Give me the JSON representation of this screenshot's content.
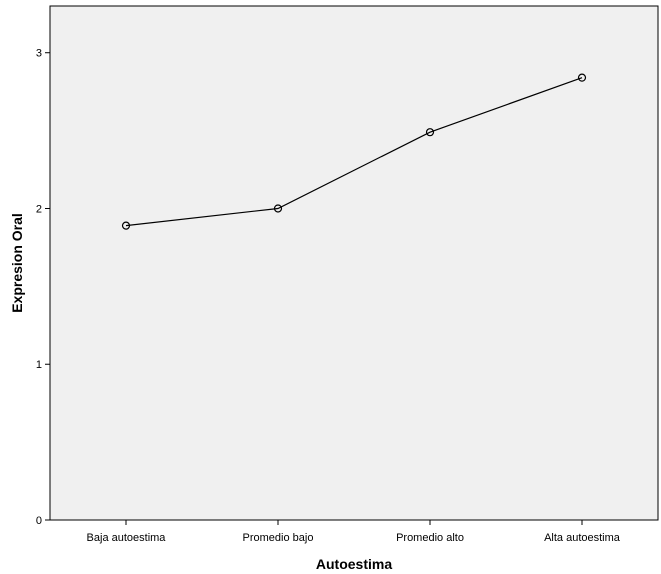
{
  "chart_data": {
    "type": "line",
    "xlabel": "Autoestima",
    "ylabel": "Expresion Oral",
    "categories": [
      "Baja autoestima",
      "Promedio bajo",
      "Promedio alto",
      "Alta autoestima"
    ],
    "series": [
      {
        "values": [
          1.89,
          2.0,
          2.49,
          2.84
        ]
      }
    ],
    "ylim": [
      0,
      3.3
    ],
    "yticks": [
      0,
      1,
      2,
      3
    ],
    "grid": false,
    "legend": "none",
    "marker": "open-circle",
    "colors": {
      "plot_background": "#f0f0f0",
      "line": "#000000",
      "axis": "#000000"
    }
  }
}
